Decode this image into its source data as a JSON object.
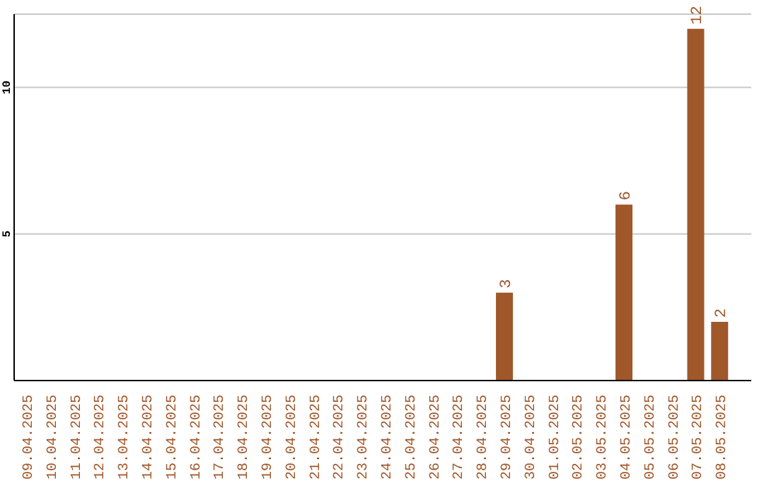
{
  "chart_data": {
    "type": "bar",
    "categories": [
      "09.04.2025",
      "10.04.2025",
      "11.04.2025",
      "12.04.2025",
      "13.04.2025",
      "14.04.2025",
      "15.04.2025",
      "16.04.2025",
      "17.04.2025",
      "18.04.2025",
      "19.04.2025",
      "20.04.2025",
      "21.04.2025",
      "22.04.2025",
      "23.04.2025",
      "24.04.2025",
      "25.04.2025",
      "26.04.2025",
      "27.04.2025",
      "28.04.2025",
      "29.04.2025",
      "30.04.2025",
      "01.05.2025",
      "02.05.2025",
      "03.05.2025",
      "04.05.2025",
      "05.05.2025",
      "06.05.2025",
      "07.05.2025",
      "08.05.2025"
    ],
    "values": [
      0,
      0,
      0,
      0,
      0,
      0,
      0,
      0,
      0,
      0,
      0,
      0,
      0,
      0,
      0,
      0,
      0,
      0,
      0,
      0,
      3,
      0,
      0,
      0,
      0,
      6,
      0,
      0,
      12,
      2
    ],
    "value_labels": [
      null,
      null,
      null,
      null,
      null,
      null,
      null,
      null,
      null,
      null,
      null,
      null,
      null,
      null,
      null,
      null,
      null,
      null,
      null,
      null,
      "3",
      null,
      null,
      null,
      null,
      "6",
      null,
      null,
      "12",
      "2"
    ],
    "color": "#a0572a",
    "ylim": [
      0,
      12.5
    ],
    "yticks": [
      5,
      10
    ],
    "grid": "y"
  }
}
